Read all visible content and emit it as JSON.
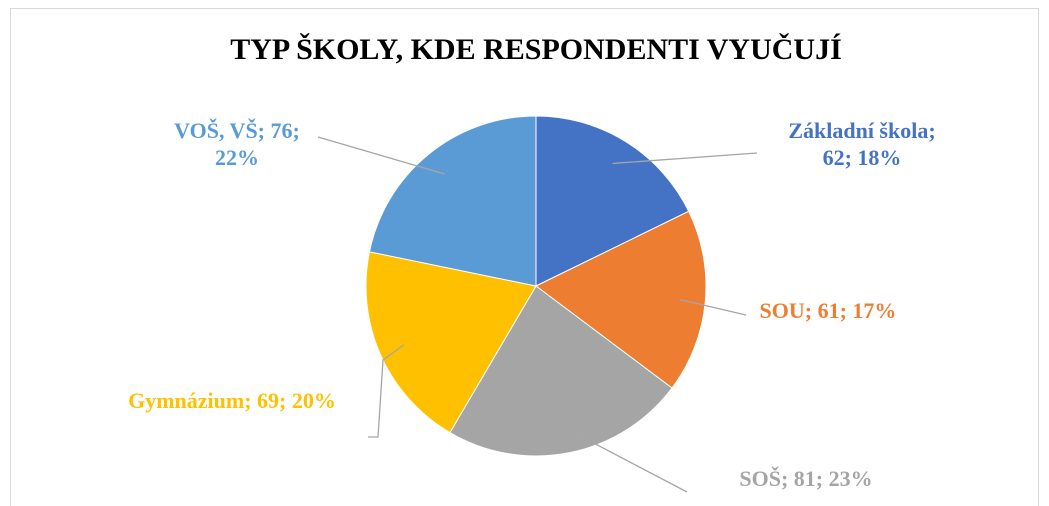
{
  "chart_data": {
    "type": "pie",
    "title": "TYP ŠKOLY, KDE RESPONDENTI VYUČUJÍ",
    "values": [
      62,
      61,
      81,
      69,
      76
    ],
    "value_labels": [
      [
        "Základní škola;",
        "62; 18%"
      ],
      [
        "SOU; 61; 17%"
      ],
      [
        "SOŠ; 81; 23%"
      ],
      [
        "Gymnázium; 69; 20%"
      ],
      [
        "VOŠ, VŠ; 76;",
        "22%"
      ]
    ],
    "colors": [
      "#4472c4",
      "#ed7d31",
      "#a5a5a5",
      "#ffc000",
      "#5b9bd5"
    ]
  }
}
